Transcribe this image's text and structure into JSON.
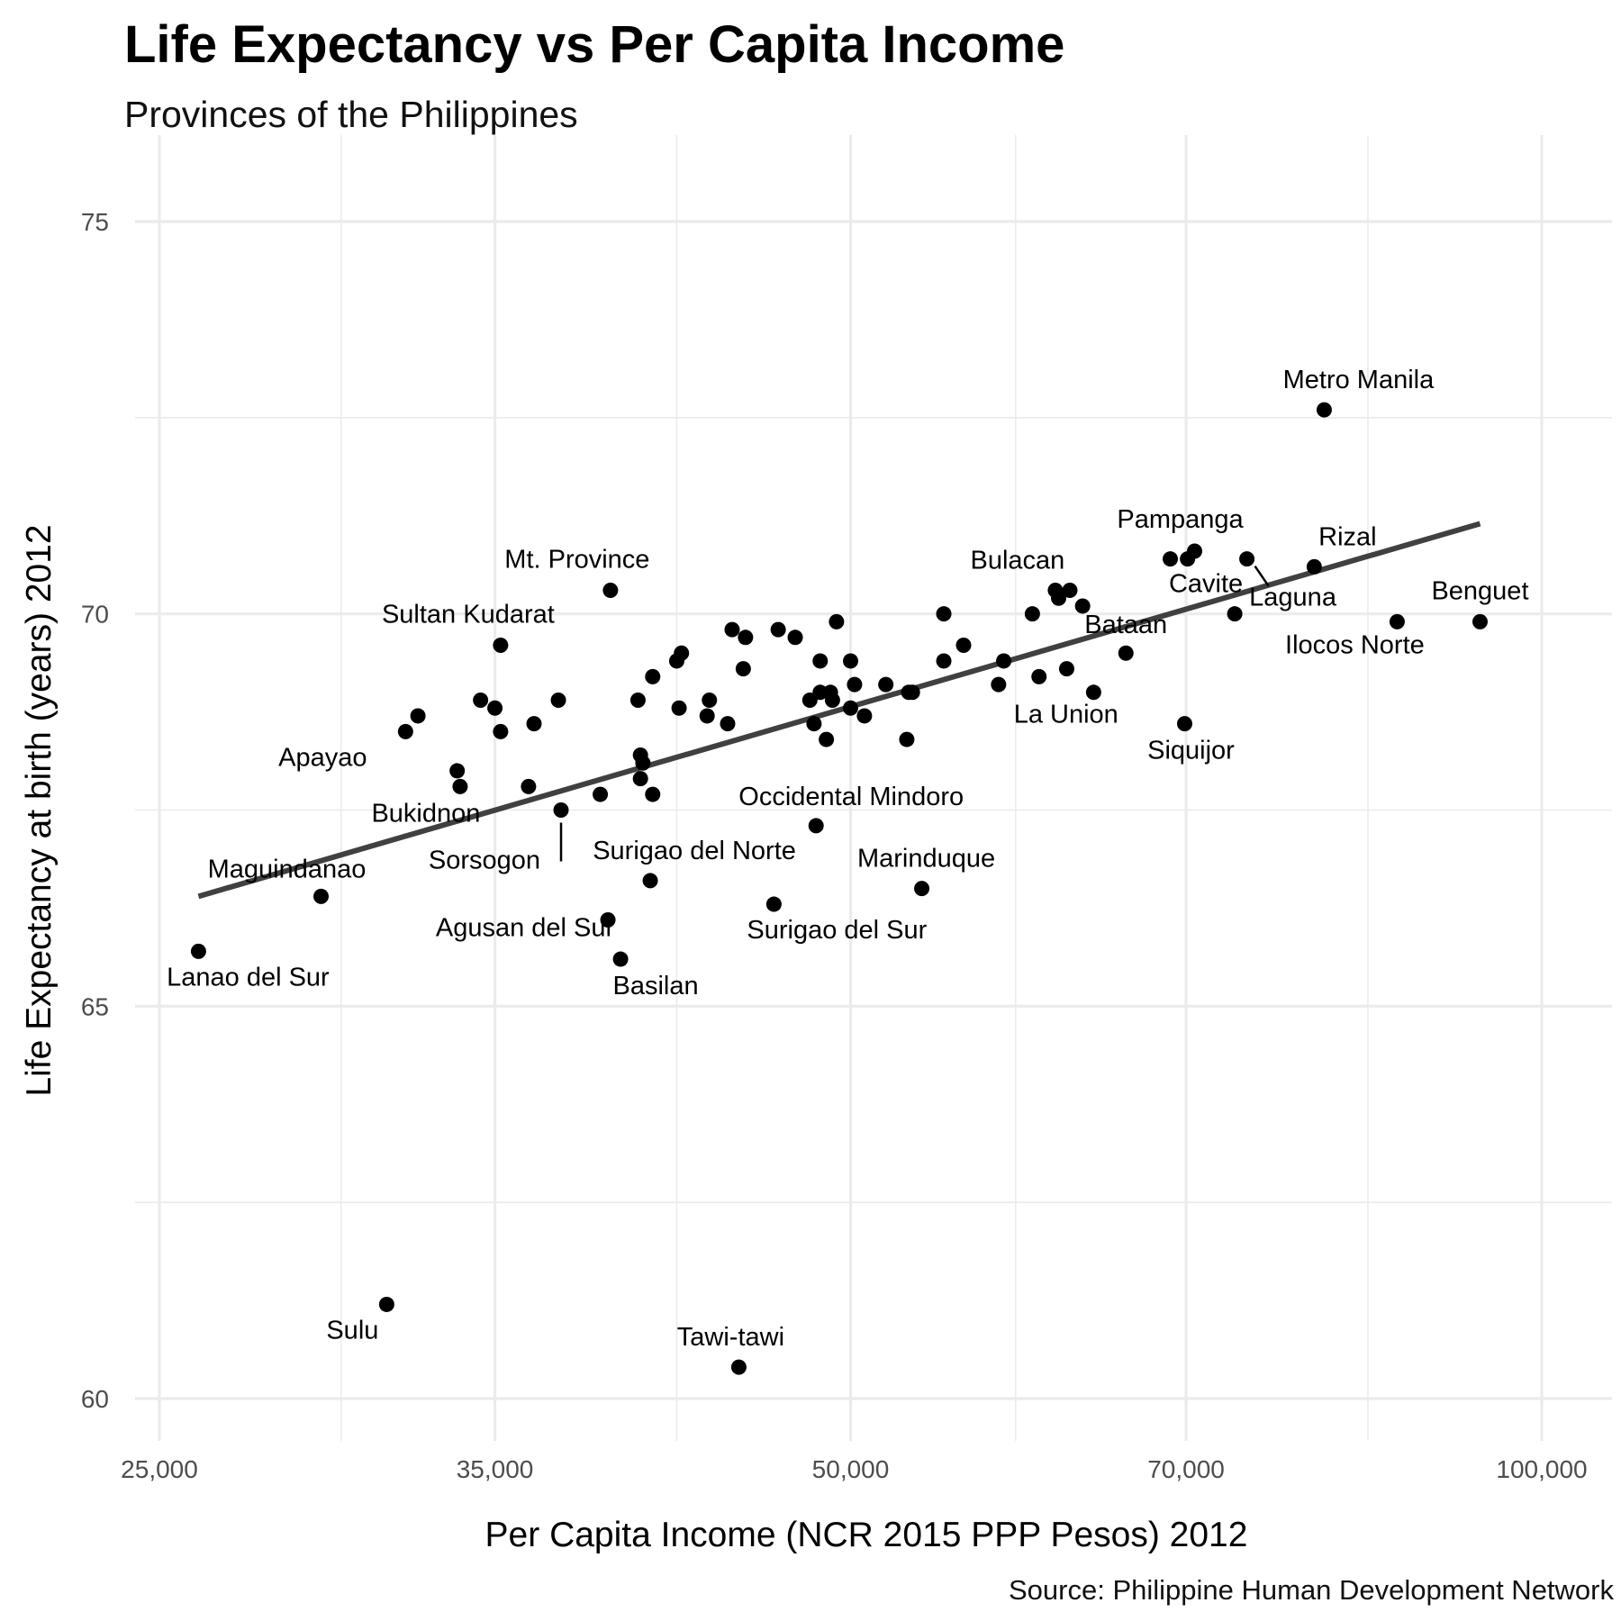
{
  "chart_data": {
    "type": "scatter",
    "title": "Life Expectancy vs Per Capita Income",
    "subtitle": "Provinces of the Philippines",
    "xlabel": "Per Capita Income (NCR 2015 PPP Pesos) 2012",
    "ylabel": "Life Expectancy at birth (years) 2012",
    "caption": "Source: Philippine Human Development Network",
    "x_scale": "log",
    "xlim": [
      24000,
      106000
    ],
    "ylim": [
      59.3,
      75.8
    ],
    "x_ticks": [
      25000,
      35000,
      50000,
      70000,
      100000
    ],
    "x_tick_labels": [
      "25,000",
      "35,000",
      "50,000",
      "70,000",
      "100,000"
    ],
    "x_minor_ticks": [
      30000,
      42000,
      59000,
      84000
    ],
    "y_ticks": [
      60,
      65,
      70,
      75
    ],
    "y_tick_labels": [
      "60",
      "65",
      "70",
      "75"
    ],
    "y_minor_ticks": [
      62.5,
      67.5,
      72.5
    ],
    "grid": true,
    "trend_line": {
      "type": "linear fit",
      "x": [
        26000,
        94000
      ],
      "y": [
        66.4,
        71.15
      ]
    },
    "points": [
      {
        "x": 26000,
        "y": 65.7,
        "label": "Lanao del Sur"
      },
      {
        "x": 29400,
        "y": 66.4,
        "label": "Maguindanao"
      },
      {
        "x": 31400,
        "y": 61.2,
        "label": "Sulu"
      },
      {
        "x": 44700,
        "y": 60.4,
        "label": "Tawi-tawi"
      },
      {
        "x": 32000,
        "y": 68.5,
        "label": "Apayao"
      },
      {
        "x": 32400,
        "y": 68.7,
        "label": ""
      },
      {
        "x": 33800,
        "y": 67.8,
        "label": "Bukidnon"
      },
      {
        "x": 33700,
        "y": 68.0,
        "label": ""
      },
      {
        "x": 34500,
        "y": 68.9,
        "label": ""
      },
      {
        "x": 35000,
        "y": 68.8,
        "label": ""
      },
      {
        "x": 35200,
        "y": 68.5,
        "label": ""
      },
      {
        "x": 35200,
        "y": 69.6,
        "label": "Sultan Kudarat"
      },
      {
        "x": 36200,
        "y": 67.8,
        "label": ""
      },
      {
        "x": 36400,
        "y": 68.6,
        "label": ""
      },
      {
        "x": 37300,
        "y": 68.9,
        "label": ""
      },
      {
        "x": 37400,
        "y": 67.5,
        "label": "Sorsogon"
      },
      {
        "x": 38900,
        "y": 67.7,
        "label": ""
      },
      {
        "x": 39200,
        "y": 66.1,
        "label": "Agusan del Sur"
      },
      {
        "x": 39300,
        "y": 70.3,
        "label": "Mt. Province"
      },
      {
        "x": 39700,
        "y": 65.6,
        "label": "Basilan"
      },
      {
        "x": 40400,
        "y": 68.9,
        "label": ""
      },
      {
        "x": 40500,
        "y": 68.2,
        "label": ""
      },
      {
        "x": 40600,
        "y": 68.1,
        "label": ""
      },
      {
        "x": 40500,
        "y": 67.9,
        "label": ""
      },
      {
        "x": 40900,
        "y": 66.6,
        "label": "Surigao del Norte"
      },
      {
        "x": 41000,
        "y": 69.2,
        "label": ""
      },
      {
        "x": 41000,
        "y": 67.7,
        "label": ""
      },
      {
        "x": 42000,
        "y": 69.4,
        "label": ""
      },
      {
        "x": 42200,
        "y": 69.5,
        "label": ""
      },
      {
        "x": 42100,
        "y": 68.8,
        "label": ""
      },
      {
        "x": 43400,
        "y": 68.9,
        "label": ""
      },
      {
        "x": 43300,
        "y": 68.7,
        "label": ""
      },
      {
        "x": 44200,
        "y": 68.6,
        "label": ""
      },
      {
        "x": 44400,
        "y": 69.8,
        "label": ""
      },
      {
        "x": 44900,
        "y": 69.3,
        "label": ""
      },
      {
        "x": 45000,
        "y": 69.7,
        "label": ""
      },
      {
        "x": 46300,
        "y": 66.3,
        "label": "Surigao del Sur"
      },
      {
        "x": 46500,
        "y": 69.8,
        "label": ""
      },
      {
        "x": 47300,
        "y": 69.7,
        "label": ""
      },
      {
        "x": 48000,
        "y": 68.9,
        "label": ""
      },
      {
        "x": 48200,
        "y": 68.6,
        "label": ""
      },
      {
        "x": 48300,
        "y": 67.3,
        "label": "Occidental Mindoro"
      },
      {
        "x": 48500,
        "y": 69.4,
        "label": ""
      },
      {
        "x": 48500,
        "y": 69.0,
        "label": ""
      },
      {
        "x": 48800,
        "y": 68.4,
        "label": ""
      },
      {
        "x": 49000,
        "y": 69.0,
        "label": ""
      },
      {
        "x": 49100,
        "y": 68.9,
        "label": ""
      },
      {
        "x": 49300,
        "y": 69.9,
        "label": ""
      },
      {
        "x": 50000,
        "y": 68.8,
        "label": ""
      },
      {
        "x": 50000,
        "y": 69.4,
        "label": ""
      },
      {
        "x": 50200,
        "y": 69.1,
        "label": ""
      },
      {
        "x": 50700,
        "y": 68.7,
        "label": ""
      },
      {
        "x": 51800,
        "y": 69.1,
        "label": ""
      },
      {
        "x": 52900,
        "y": 68.4,
        "label": ""
      },
      {
        "x": 53000,
        "y": 69.0,
        "label": ""
      },
      {
        "x": 53200,
        "y": 69.0,
        "label": ""
      },
      {
        "x": 53700,
        "y": 66.5,
        "label": "Marinduque"
      },
      {
        "x": 54900,
        "y": 70.0,
        "label": ""
      },
      {
        "x": 54900,
        "y": 69.4,
        "label": ""
      },
      {
        "x": 56000,
        "y": 69.6,
        "label": ""
      },
      {
        "x": 58000,
        "y": 69.1,
        "label": ""
      },
      {
        "x": 58300,
        "y": 69.4,
        "label": ""
      },
      {
        "x": 60000,
        "y": 70.0,
        "label": ""
      },
      {
        "x": 60400,
        "y": 69.2,
        "label": "La Union"
      },
      {
        "x": 61400,
        "y": 70.3,
        "label": "Bulacan"
      },
      {
        "x": 61600,
        "y": 70.2,
        "label": ""
      },
      {
        "x": 62100,
        "y": 69.3,
        "label": ""
      },
      {
        "x": 62300,
        "y": 70.3,
        "label": ""
      },
      {
        "x": 63100,
        "y": 70.1,
        "label": ""
      },
      {
        "x": 63800,
        "y": 69.0,
        "label": ""
      },
      {
        "x": 65900,
        "y": 69.5,
        "label": "Bataan"
      },
      {
        "x": 68900,
        "y": 70.7,
        "label": ""
      },
      {
        "x": 69900,
        "y": 68.6,
        "label": "Siquijor"
      },
      {
        "x": 70100,
        "y": 70.7,
        "label": ""
      },
      {
        "x": 70600,
        "y": 70.8,
        "label": "Pampanga"
      },
      {
        "x": 73500,
        "y": 70.0,
        "label": "Cavite"
      },
      {
        "x": 74400,
        "y": 70.7,
        "label": "Laguna"
      },
      {
        "x": 79600,
        "y": 70.6,
        "label": "Rizal"
      },
      {
        "x": 80400,
        "y": 72.6,
        "label": "Metro Manila"
      },
      {
        "x": 86500,
        "y": 69.9,
        "label": "Ilocos Norte"
      },
      {
        "x": 94000,
        "y": 69.9,
        "label": "Benguet"
      }
    ],
    "colors": {
      "points": "#000000",
      "trend_line": "#404040",
      "grid": "#ebebeb",
      "tick_text": "#4d4d4d"
    }
  }
}
